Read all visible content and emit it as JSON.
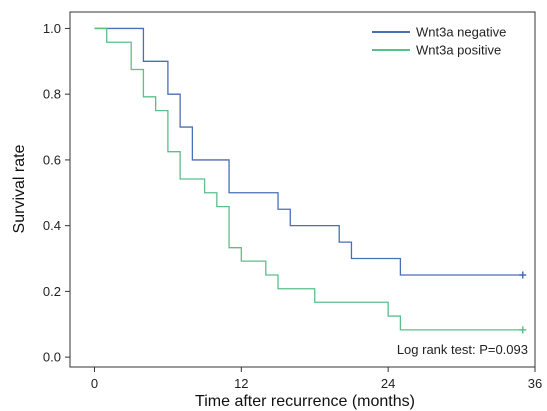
{
  "chart_data": {
    "type": "line",
    "step": true,
    "xlabel": "Time after recurrence (months)",
    "ylabel": "Survival rate",
    "xlim": [
      -2,
      36
    ],
    "ylim": [
      -0.03,
      1.05
    ],
    "xticks": [
      0,
      12,
      24,
      36
    ],
    "yticks": [
      0.0,
      0.2,
      0.4,
      0.6,
      0.8,
      1.0
    ],
    "ytick_labels": [
      "0.0",
      "0.2",
      "0.4",
      "0.6",
      "0.8",
      "1.0"
    ],
    "grid": false,
    "legend_position": "top-right",
    "annotation": "Log rank test: P=0.093",
    "series": [
      {
        "name": "Wnt3a negative",
        "color": "#4a6fb5",
        "censor_marker": "plus",
        "x": [
          0,
          4,
          6,
          7,
          8,
          11,
          15,
          16,
          20,
          21,
          25,
          35
        ],
        "y": [
          1.0,
          0.9,
          0.8,
          0.7,
          0.6,
          0.5,
          0.45,
          0.4,
          0.35,
          0.3,
          0.25,
          0.25
        ],
        "censored": [
          [
            35,
            0.25
          ]
        ]
      },
      {
        "name": "Wnt3a positive",
        "color": "#5cbf8a",
        "censor_marker": "plus",
        "x": [
          0,
          1,
          3,
          4,
          5,
          6,
          7,
          9,
          10,
          11,
          12,
          14,
          15,
          18,
          24,
          25,
          35
        ],
        "y": [
          1.0,
          0.958,
          0.875,
          0.792,
          0.75,
          0.625,
          0.542,
          0.5,
          0.458,
          0.333,
          0.292,
          0.25,
          0.208,
          0.167,
          0.125,
          0.083,
          0.083
        ],
        "censored": [
          [
            35,
            0.083
          ]
        ]
      }
    ]
  }
}
